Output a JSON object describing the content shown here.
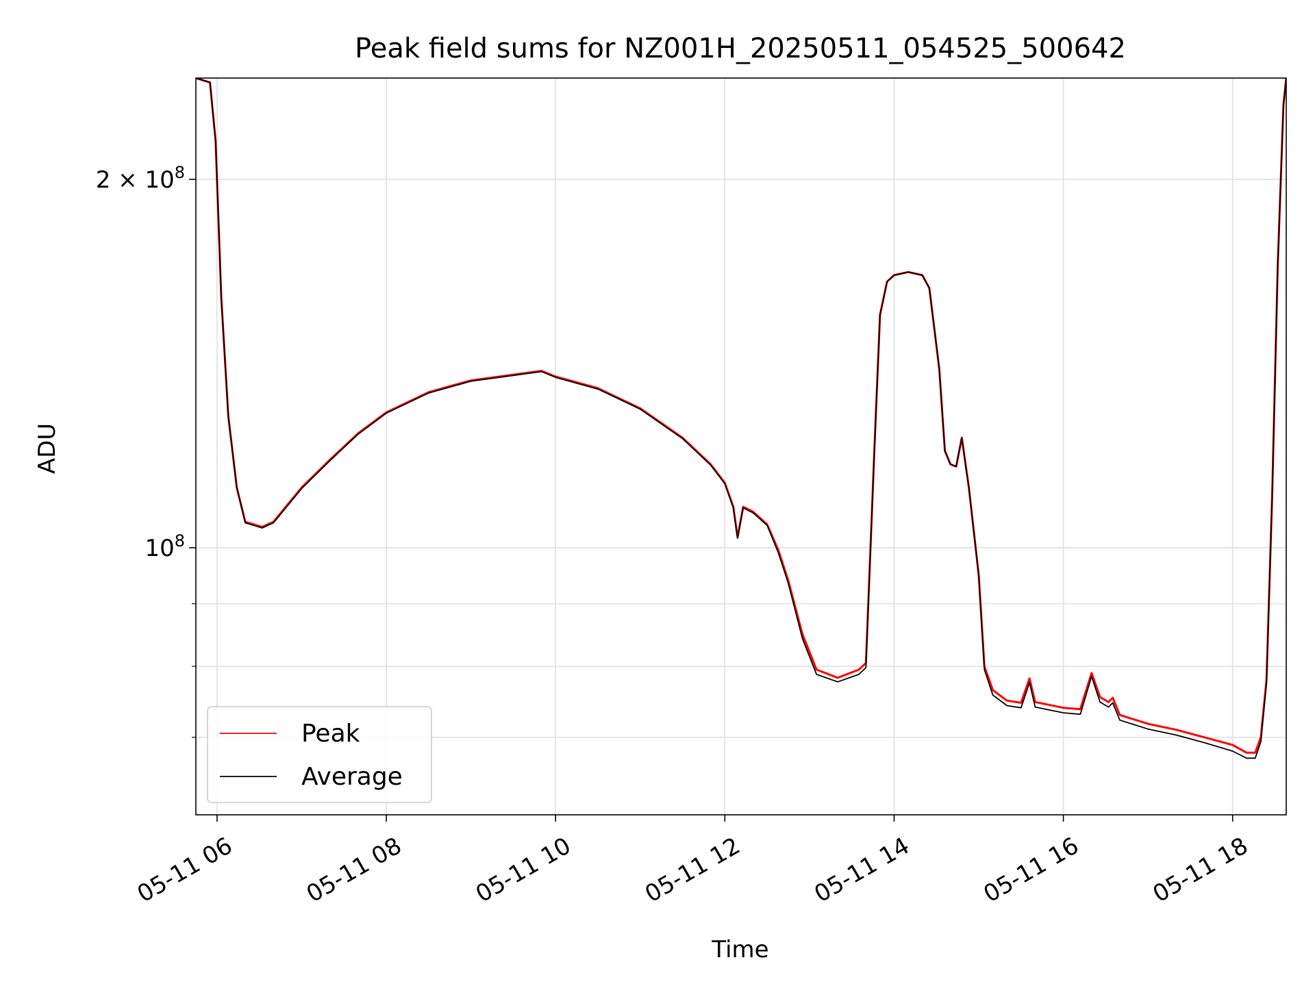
{
  "chart_data": {
    "type": "line",
    "title": "Peak field sums for NZ001H_20250511_054525_500642",
    "xlabel": "Time",
    "ylabel": "ADU",
    "yscale": "log",
    "grid": true,
    "legend_position": "lower-left",
    "xlim": [
      "05-11 05:45",
      "05-11 18:38"
    ],
    "ylim": [
      60500000,
      242000000
    ],
    "x_ticks": [
      "05-11 06",
      "05-11 08",
      "05-11 10",
      "05-11 12",
      "05-11 14",
      "05-11 16",
      "05-11 18"
    ],
    "y_ticks": [
      {
        "value": 200000000,
        "base": "2 × 10",
        "exp": "8"
      },
      {
        "value": 100000000,
        "base": "10",
        "exp": "8"
      }
    ],
    "series": [
      {
        "name": "Peak",
        "color": "#ff0000",
        "points": [
          [
            "05-11 05:45",
            242000000
          ],
          [
            "05-11 05:55",
            240000000
          ],
          [
            "05-11 05:59",
            215000000
          ],
          [
            "05-11 06:03",
            160000000
          ],
          [
            "05-11 06:08",
            128000000
          ],
          [
            "05-11 06:14",
            112000000
          ],
          [
            "05-11 06:20",
            105000000
          ],
          [
            "05-11 06:26",
            104500000
          ],
          [
            "05-11 06:32",
            104000000
          ],
          [
            "05-11 06:40",
            105000000
          ],
          [
            "05-11 07:00",
            112000000
          ],
          [
            "05-11 07:20",
            118000000
          ],
          [
            "05-11 07:40",
            124000000
          ],
          [
            "05-11 08:00",
            129000000
          ],
          [
            "05-11 08:30",
            134000000
          ],
          [
            "05-11 09:00",
            137000000
          ],
          [
            "05-11 09:30",
            138500000
          ],
          [
            "05-11 09:50",
            139500000
          ],
          [
            "05-11 10:00",
            138000000
          ],
          [
            "05-11 10:30",
            135000000
          ],
          [
            "05-11 11:00",
            130000000
          ],
          [
            "05-11 11:30",
            123000000
          ],
          [
            "05-11 11:50",
            117000000
          ],
          [
            "05-11 12:00",
            113000000
          ],
          [
            "05-11 12:06",
            108000000
          ],
          [
            "05-11 12:09",
            102000000
          ],
          [
            "05-11 12:13",
            108000000
          ],
          [
            "05-11 12:20",
            107000000
          ],
          [
            "05-11 12:30",
            104500000
          ],
          [
            "05-11 12:38",
            99500000
          ],
          [
            "05-11 12:45",
            94000000
          ],
          [
            "05-11 12:55",
            85000000
          ],
          [
            "05-11 13:05",
            79500000
          ],
          [
            "05-11 13:20",
            78300000
          ],
          [
            "05-11 13:35",
            79500000
          ],
          [
            "05-11 13:40",
            80500000
          ],
          [
            "05-11 13:46",
            120000000
          ],
          [
            "05-11 13:50",
            155000000
          ],
          [
            "05-11 13:55",
            165000000
          ],
          [
            "05-11 14:00",
            167000000
          ],
          [
            "05-11 14:10",
            168000000
          ],
          [
            "05-11 14:20",
            167000000
          ],
          [
            "05-11 14:25",
            163000000
          ],
          [
            "05-11 14:32",
            140000000
          ],
          [
            "05-11 14:36",
            120000000
          ],
          [
            "05-11 14:40",
            117000000
          ],
          [
            "05-11 14:44",
            116500000
          ],
          [
            "05-11 14:48",
            123000000
          ],
          [
            "05-11 14:53",
            112000000
          ],
          [
            "05-11 14:57",
            102000000
          ],
          [
            "05-11 15:00",
            95000000
          ],
          [
            "05-11 15:04",
            80000000
          ],
          [
            "05-11 15:10",
            76500000
          ],
          [
            "05-11 15:20",
            75000000
          ],
          [
            "05-11 15:30",
            74700000
          ],
          [
            "05-11 15:36",
            78200000
          ],
          [
            "05-11 15:40",
            74800000
          ],
          [
            "05-11 16:00",
            74000000
          ],
          [
            "05-11 16:12",
            73800000
          ],
          [
            "05-11 16:20",
            79000000
          ],
          [
            "05-11 16:26",
            75500000
          ],
          [
            "05-11 16:32",
            74800000
          ],
          [
            "05-11 16:35",
            75400000
          ],
          [
            "05-11 16:40",
            73000000
          ],
          [
            "05-11 17:00",
            71800000
          ],
          [
            "05-11 17:20",
            71000000
          ],
          [
            "05-11 17:40",
            70000000
          ],
          [
            "05-11 18:00",
            69000000
          ],
          [
            "05-11 18:10",
            68000000
          ],
          [
            "05-11 18:16",
            68000000
          ],
          [
            "05-11 18:20",
            70000000
          ],
          [
            "05-11 18:24",
            78000000
          ],
          [
            "05-11 18:28",
            110000000
          ],
          [
            "05-11 18:32",
            170000000
          ],
          [
            "05-11 18:36",
            230000000
          ],
          [
            "05-11 18:38",
            242000000
          ]
        ]
      },
      {
        "name": "Average",
        "color": "#000000",
        "points": [
          [
            "05-11 05:45",
            242000000
          ],
          [
            "05-11 05:55",
            240000000
          ],
          [
            "05-11 05:59",
            215000000
          ],
          [
            "05-11 06:03",
            160000000
          ],
          [
            "05-11 06:08",
            128000000
          ],
          [
            "05-11 06:14",
            112000000
          ],
          [
            "05-11 06:20",
            104800000
          ],
          [
            "05-11 06:26",
            104300000
          ],
          [
            "05-11 06:32",
            103800000
          ],
          [
            "05-11 06:40",
            104800000
          ],
          [
            "05-11 07:00",
            111800000
          ],
          [
            "05-11 07:20",
            117800000
          ],
          [
            "05-11 07:40",
            123800000
          ],
          [
            "05-11 08:00",
            128800000
          ],
          [
            "05-11 08:30",
            133800000
          ],
          [
            "05-11 09:00",
            136800000
          ],
          [
            "05-11 09:30",
            138300000
          ],
          [
            "05-11 09:50",
            139300000
          ],
          [
            "05-11 10:00",
            137800000
          ],
          [
            "05-11 10:30",
            134800000
          ],
          [
            "05-11 11:00",
            129800000
          ],
          [
            "05-11 11:30",
            122800000
          ],
          [
            "05-11 11:50",
            116800000
          ],
          [
            "05-11 12:00",
            112800000
          ],
          [
            "05-11 12:06",
            107800000
          ],
          [
            "05-11 12:09",
            101800000
          ],
          [
            "05-11 12:13",
            107800000
          ],
          [
            "05-11 12:20",
            106800000
          ],
          [
            "05-11 12:30",
            104300000
          ],
          [
            "05-11 12:38",
            99000000
          ],
          [
            "05-11 12:45",
            93500000
          ],
          [
            "05-11 12:55",
            84300000
          ],
          [
            "05-11 13:05",
            78800000
          ],
          [
            "05-11 13:20",
            77700000
          ],
          [
            "05-11 13:35",
            78800000
          ],
          [
            "05-11 13:40",
            79800000
          ],
          [
            "05-11 13:46",
            120000000
          ],
          [
            "05-11 13:50",
            155000000
          ],
          [
            "05-11 13:55",
            165000000
          ],
          [
            "05-11 14:00",
            167000000
          ],
          [
            "05-11 14:10",
            168000000
          ],
          [
            "05-11 14:20",
            167000000
          ],
          [
            "05-11 14:25",
            163000000
          ],
          [
            "05-11 14:32",
            140000000
          ],
          [
            "05-11 14:36",
            120000000
          ],
          [
            "05-11 14:40",
            117000000
          ],
          [
            "05-11 14:44",
            116500000
          ],
          [
            "05-11 14:48",
            123000000
          ],
          [
            "05-11 14:53",
            112000000
          ],
          [
            "05-11 14:57",
            102000000
          ],
          [
            "05-11 15:00",
            95000000
          ],
          [
            "05-11 15:04",
            79500000
          ],
          [
            "05-11 15:10",
            75800000
          ],
          [
            "05-11 15:20",
            74300000
          ],
          [
            "05-11 15:30",
            74000000
          ],
          [
            "05-11 15:36",
            77600000
          ],
          [
            "05-11 15:40",
            74100000
          ],
          [
            "05-11 16:00",
            73300000
          ],
          [
            "05-11 16:12",
            73100000
          ],
          [
            "05-11 16:20",
            78500000
          ],
          [
            "05-11 16:26",
            74800000
          ],
          [
            "05-11 16:32",
            74100000
          ],
          [
            "05-11 16:35",
            74700000
          ],
          [
            "05-11 16:40",
            72300000
          ],
          [
            "05-11 17:00",
            71100000
          ],
          [
            "05-11 17:20",
            70300000
          ],
          [
            "05-11 17:40",
            69300000
          ],
          [
            "05-11 18:00",
            68200000
          ],
          [
            "05-11 18:10",
            67300000
          ],
          [
            "05-11 18:16",
            67300000
          ],
          [
            "05-11 18:20",
            69400000
          ],
          [
            "05-11 18:24",
            77500000
          ],
          [
            "05-11 18:28",
            110000000
          ],
          [
            "05-11 18:32",
            170000000
          ],
          [
            "05-11 18:36",
            230000000
          ],
          [
            "05-11 18:38",
            242000000
          ]
        ]
      }
    ]
  }
}
